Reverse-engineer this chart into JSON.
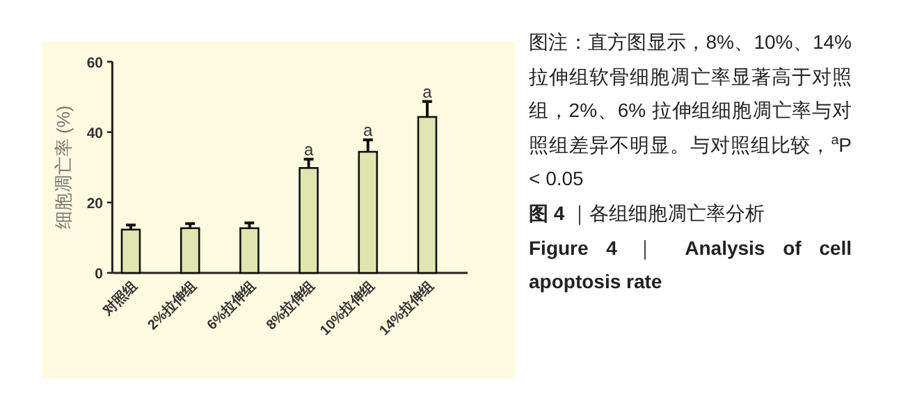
{
  "chart_data": {
    "type": "bar",
    "ylabel": "细胞凋亡率 (%)",
    "categories": [
      "对照组",
      "2%拉伸组",
      "6%拉伸组",
      "8%拉伸组",
      "10%拉伸组",
      "14%拉伸组"
    ],
    "values": [
      12.3,
      12.7,
      12.7,
      29.8,
      34.4,
      44.3
    ],
    "errors": [
      1.3,
      1.3,
      1.5,
      2.5,
      3.4,
      4.4
    ],
    "color": "#dfe6b0",
    "ylim": [
      0,
      60
    ],
    "yticks": [
      0,
      20,
      40,
      60
    ],
    "grid": false,
    "annotations": [
      {
        "text": "a",
        "x": "8%拉伸组",
        "y": 32.3
      },
      {
        "text": "a",
        "x": "10%拉伸组",
        "y": 37.8
      },
      {
        "text": "a",
        "x": "14%拉伸组",
        "y": 48.7
      },
      "图注：直方图显示，8%、10%、14% 拉伸组软骨细胞凋亡率显著高于对照组，2%、6% 拉伸组细胞凋亡率与对照组差异不明显。与对照组比较，$^{a}$P < 0.05",
      "**图 4** ｜各组细胞凋亡率分析",
      "**Figure 4** ｜ **Analysis of cell apoptosis rate**"
    ]
  }
}
